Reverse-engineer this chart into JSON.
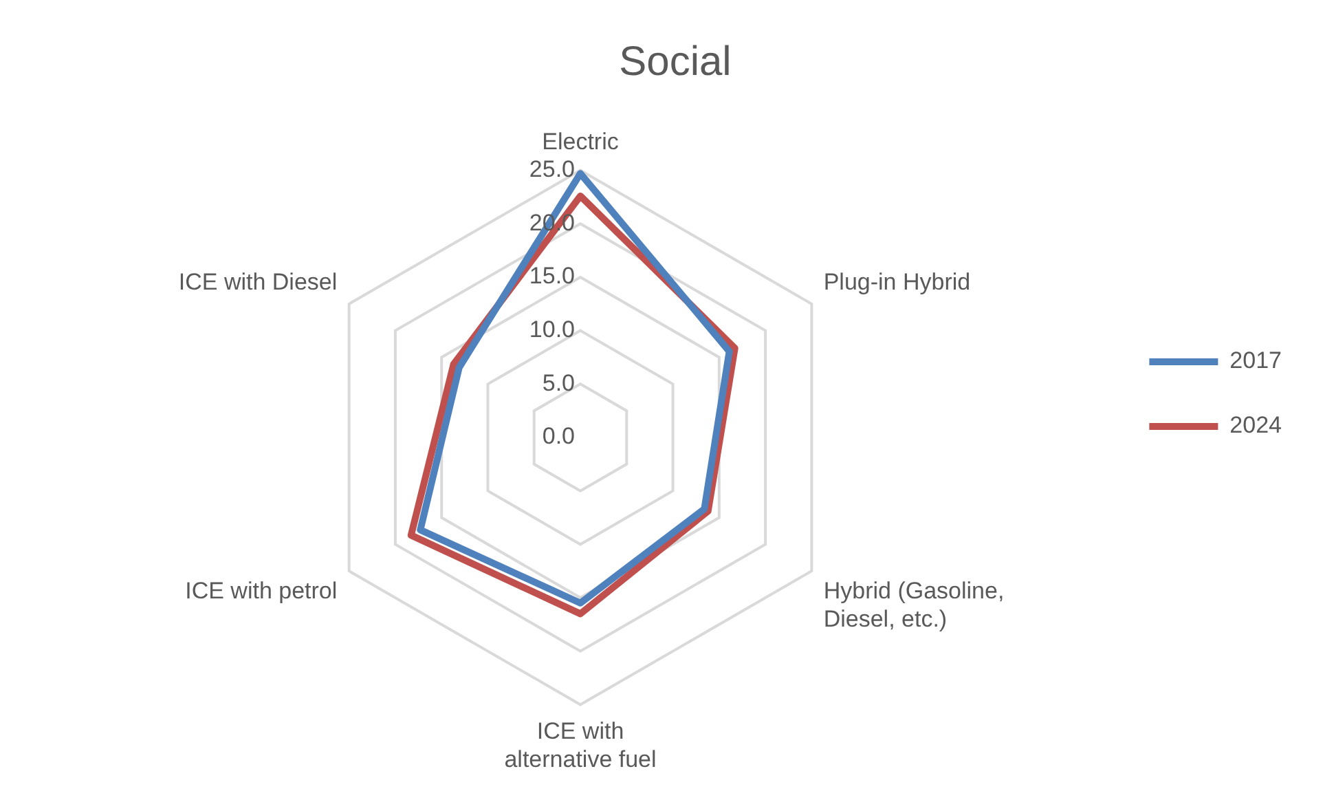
{
  "chart_data": {
    "type": "radar",
    "title": "Social",
    "categories": [
      "Electric",
      "Plug-in Hybrid",
      "Hybrid (Gasoline, Diesel, etc.)",
      "ICE with alternative fuel",
      "ICE with petrol",
      "ICE with Diesel"
    ],
    "series": [
      {
        "name": "2017",
        "color": "#4f81bd",
        "values": [
          24.7,
          16.1,
          13.4,
          15.5,
          17.3,
          13.1
        ]
      },
      {
        "name": "2024",
        "color": "#c0504d",
        "values": [
          22.6,
          16.7,
          13.8,
          16.5,
          18.3,
          13.7
        ]
      }
    ],
    "ylim": [
      0,
      25
    ],
    "yticks": [
      {
        "value": 0,
        "label": "0.0"
      },
      {
        "value": 5,
        "label": "5.0"
      },
      {
        "value": 10,
        "label": "10.0"
      },
      {
        "value": 15,
        "label": "15.0"
      },
      {
        "value": 20,
        "label": "20.0"
      },
      {
        "value": 25,
        "label": "25.0"
      }
    ],
    "grid": true,
    "legend": "right",
    "marker": "none"
  }
}
